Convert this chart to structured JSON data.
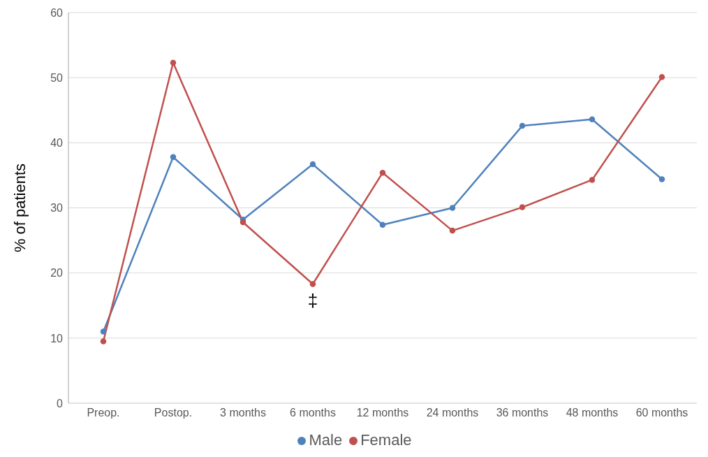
{
  "chart_data": {
    "type": "line",
    "ylabel": "% of patients",
    "categories": [
      "Preop.",
      "Postop.",
      "3 months",
      "6 months",
      "12 months",
      "24 months",
      "36 months",
      "48 months",
      "60 months"
    ],
    "series": [
      {
        "name": "Male",
        "color": "#4f81bd",
        "values": [
          11.0,
          37.8,
          28.2,
          36.7,
          27.4,
          30.0,
          42.6,
          43.6,
          34.4
        ]
      },
      {
        "name": "Female",
        "color": "#c0504d",
        "values": [
          9.5,
          52.3,
          27.8,
          18.3,
          35.4,
          26.5,
          30.1,
          34.3,
          50.1
        ]
      }
    ],
    "ylim": [
      0,
      60
    ],
    "yticks": [
      0,
      10,
      20,
      30,
      40,
      50,
      60
    ],
    "grid": "y",
    "legend": "bottom",
    "marker": "circle",
    "line_style": "solid",
    "annotations": [
      {
        "text": "‡",
        "x": "6 months",
        "y": 18.3
      }
    ]
  }
}
